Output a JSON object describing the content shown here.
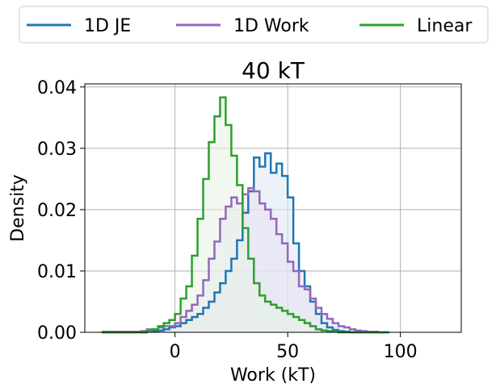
{
  "chart_data": {
    "type": "histogram-step",
    "title": "40 kT",
    "xlabel": "Work (kT)",
    "ylabel": "Density",
    "xlim": [
      -40,
      127
    ],
    "ylim": [
      0,
      0.0405
    ],
    "xticks": [
      0,
      50,
      100
    ],
    "yticks": [
      0.0,
      0.01,
      0.02,
      0.03,
      0.04
    ],
    "xtick_labels": [
      "0",
      "50",
      "100"
    ],
    "ytick_labels": [
      "0.00",
      "0.01",
      "0.02",
      "0.03",
      "0.04"
    ],
    "grid": true,
    "legend": {
      "placement": "top, outside, 3 columns",
      "entries": [
        "1D JE",
        "1D Work",
        "Linear"
      ]
    },
    "bin_width": 2.5,
    "series": [
      {
        "name": "1D JE",
        "color": "#1f77b4",
        "fill": "#dfe8f3",
        "x_start": -32.5,
        "values": [
          0.0,
          0.0,
          0.0,
          0.0,
          0.0,
          0.0,
          0.0,
          0.0,
          0.0001,
          0.0002,
          0.0003,
          0.0005,
          0.0008,
          0.001,
          0.0015,
          0.002,
          0.0025,
          0.003,
          0.004,
          0.005,
          0.0065,
          0.008,
          0.01,
          0.012,
          0.015,
          0.0195,
          0.023,
          0.0285,
          0.027,
          0.0292,
          0.026,
          0.0275,
          0.0255,
          0.022,
          0.0145,
          0.01,
          0.0075,
          0.005,
          0.003,
          0.0015,
          0.0008,
          0.0004,
          0.0002,
          0.0001,
          0.0,
          0.0,
          0.0,
          0.0,
          0.0,
          0.0,
          0.0
        ]
      },
      {
        "name": "1D Work",
        "color": "#9467bd",
        "fill": "#e4e2f0",
        "x_start": -32.5,
        "values": [
          0.0001,
          0.0001,
          0.0001,
          0.0001,
          0.0001,
          0.0001,
          0.0001,
          0.0002,
          0.0005,
          0.0005,
          0.0008,
          0.001,
          0.001,
          0.0015,
          0.0025,
          0.0035,
          0.0045,
          0.006,
          0.0085,
          0.012,
          0.0148,
          0.0185,
          0.0205,
          0.022,
          0.021,
          0.0225,
          0.0235,
          0.023,
          0.021,
          0.02,
          0.0185,
          0.016,
          0.0145,
          0.0115,
          0.01,
          0.0075,
          0.007,
          0.0055,
          0.004,
          0.003,
          0.0022,
          0.0015,
          0.001,
          0.0008,
          0.0005,
          0.0003,
          0.0002,
          0.0001,
          0.0001,
          0.0,
          0.0
        ]
      },
      {
        "name": "Linear",
        "color": "#2ca02c",
        "fill": "#e8f3e3",
        "x_start": -32.5,
        "values": [
          0.0,
          0.0,
          0.0,
          0.0,
          0.0,
          0.0,
          0.0,
          0.0,
          0.0002,
          0.0005,
          0.001,
          0.0015,
          0.002,
          0.003,
          0.0055,
          0.0075,
          0.0125,
          0.0185,
          0.025,
          0.031,
          0.0352,
          0.0383,
          0.0338,
          0.0288,
          0.024,
          0.017,
          0.012,
          0.008,
          0.006,
          0.005,
          0.0045,
          0.004,
          0.0035,
          0.003,
          0.0025,
          0.002,
          0.0015,
          0.001,
          0.0005,
          0.0003,
          0.0002,
          0.0001,
          0.0,
          0.0,
          0.0,
          0.0,
          0.0,
          0.0,
          0.0,
          0.0,
          0.0
        ]
      }
    ]
  }
}
